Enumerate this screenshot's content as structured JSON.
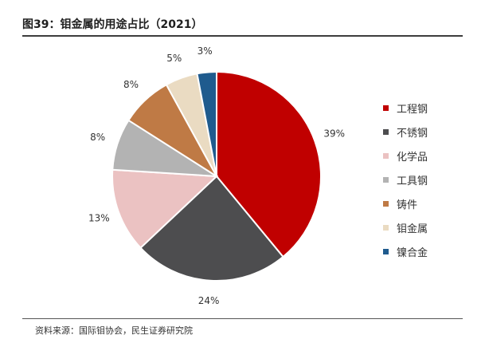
{
  "page": {
    "title": "图39：钼金属的用途占比（2021）",
    "source": "资料来源：国际钼协会，民生证券研究院"
  },
  "chart_data": {
    "type": "pie",
    "title": "图39：钼金属的用途占比（2021）",
    "legend_position": "right",
    "slices": [
      {
        "name": "工程钢",
        "value": 39,
        "label": "39%",
        "color": "#C00000"
      },
      {
        "name": "不锈钢",
        "value": 24,
        "label": "24%",
        "color": "#4D4D4F"
      },
      {
        "name": "化学品",
        "value": 13,
        "label": "13%",
        "color": "#EBC2C2"
      },
      {
        "name": "工具钢",
        "value": 8,
        "label": "8%",
        "color": "#B3B3B3"
      },
      {
        "name": "铸件",
        "value": 8,
        "label": "8%",
        "color": "#BF7A45"
      },
      {
        "name": "钼金属",
        "value": 5,
        "label": "5%",
        "color": "#EADBC2"
      },
      {
        "name": "镍合金",
        "value": 3,
        "label": "3%",
        "color": "#1F5B8E"
      }
    ]
  }
}
